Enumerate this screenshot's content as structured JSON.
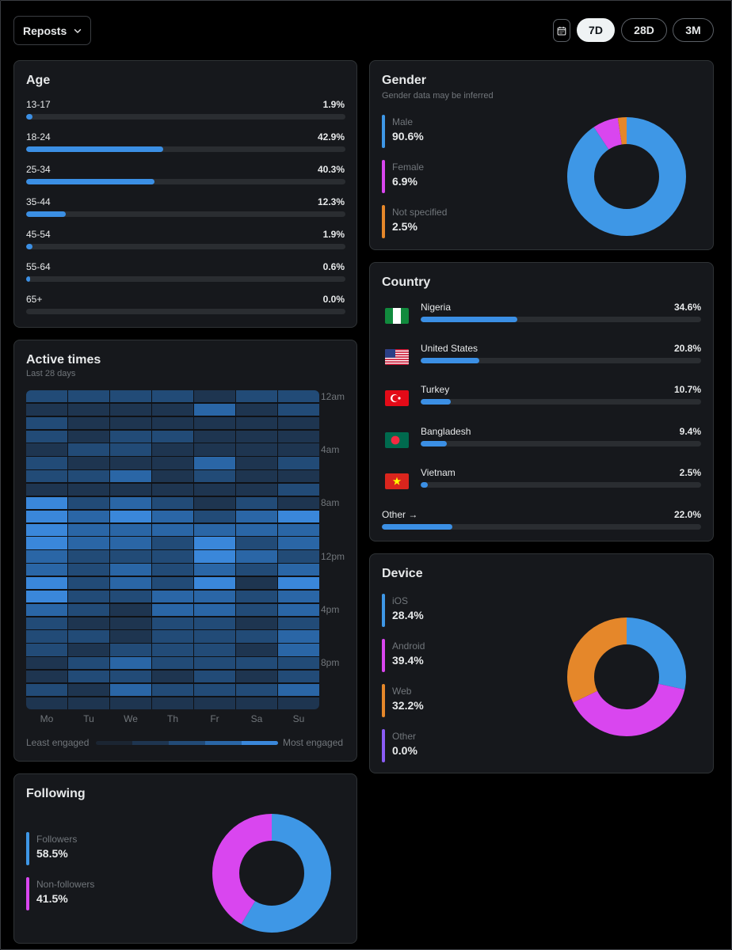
{
  "toolbar": {
    "metric": "Reposts",
    "ranges": [
      {
        "label": "7D",
        "active": true
      },
      {
        "label": "28D",
        "active": false
      },
      {
        "label": "3M",
        "active": false
      }
    ]
  },
  "age": {
    "title": "Age",
    "rows": [
      {
        "label": "13-17",
        "value": "1.9%",
        "pct": 1.9
      },
      {
        "label": "18-24",
        "value": "42.9%",
        "pct": 42.9
      },
      {
        "label": "25-34",
        "value": "40.3%",
        "pct": 40.3
      },
      {
        "label": "35-44",
        "value": "12.3%",
        "pct": 12.3
      },
      {
        "label": "45-54",
        "value": "1.9%",
        "pct": 1.9
      },
      {
        "label": "55-64",
        "value": "0.6%",
        "pct": 0.6
      },
      {
        "label": "65+",
        "value": "0.0%",
        "pct": 0.0
      }
    ]
  },
  "gender": {
    "title": "Gender",
    "subtitle": "Gender data may be inferred",
    "items": [
      {
        "label": "Male",
        "value": "90.6%",
        "pct": 90.6,
        "color": "#3e97e6"
      },
      {
        "label": "Female",
        "value": "6.9%",
        "pct": 6.9,
        "color": "#d946ef"
      },
      {
        "label": "Not specified",
        "value": "2.5%",
        "pct": 2.5,
        "color": "#e5872a"
      }
    ]
  },
  "country": {
    "title": "Country",
    "rows": [
      {
        "label": "Nigeria",
        "value": "34.6%",
        "pct": 34.6,
        "flag": "nigeria-flag-icon"
      },
      {
        "label": "United States",
        "value": "20.8%",
        "pct": 20.8,
        "flag": "united-states-flag-icon"
      },
      {
        "label": "Turkey",
        "value": "10.7%",
        "pct": 10.7,
        "flag": "turkey-flag-icon"
      },
      {
        "label": "Bangladesh",
        "value": "9.4%",
        "pct": 9.4,
        "flag": "bangladesh-flag-icon"
      },
      {
        "label": "Vietnam",
        "value": "2.5%",
        "pct": 2.5,
        "flag": "vietnam-flag-icon"
      }
    ],
    "other": {
      "label": "Other →",
      "value": "22.0%",
      "pct": 22.0
    }
  },
  "active_times": {
    "title": "Active times",
    "subtitle": "Last 28 days",
    "time_labels": [
      "12am",
      "4am",
      "8am",
      "12pm",
      "4pm",
      "8pm"
    ],
    "days": [
      "Mo",
      "Tu",
      "We",
      "Th",
      "Fr",
      "Sa",
      "Su"
    ],
    "legend_least": "Least engaged",
    "legend_most": "Most engaged",
    "palette": [
      "#1b2532",
      "#1e3550",
      "#224b77",
      "#2a66a6",
      "#3a87da"
    ],
    "grid": [
      [
        2,
        2,
        2,
        2,
        1,
        2,
        2
      ],
      [
        1,
        1,
        1,
        1,
        3,
        1,
        2
      ],
      [
        2,
        1,
        1,
        1,
        1,
        1,
        1
      ],
      [
        2,
        1,
        2,
        2,
        1,
        1,
        1
      ],
      [
        1,
        2,
        2,
        1,
        1,
        1,
        1
      ],
      [
        2,
        1,
        1,
        1,
        3,
        1,
        2
      ],
      [
        2,
        2,
        3,
        1,
        2,
        1,
        1
      ],
      [
        1,
        1,
        1,
        1,
        1,
        1,
        2
      ],
      [
        4,
        2,
        3,
        2,
        1,
        2,
        1
      ],
      [
        4,
        3,
        4,
        3,
        2,
        3,
        4
      ],
      [
        4,
        3,
        3,
        3,
        3,
        3,
        3
      ],
      [
        4,
        3,
        3,
        2,
        4,
        2,
        3
      ],
      [
        3,
        2,
        2,
        2,
        4,
        3,
        2
      ],
      [
        3,
        2,
        3,
        2,
        3,
        2,
        3
      ],
      [
        4,
        2,
        3,
        2,
        4,
        1,
        4
      ],
      [
        4,
        2,
        2,
        3,
        3,
        2,
        3
      ],
      [
        3,
        2,
        1,
        3,
        3,
        2,
        3
      ],
      [
        2,
        1,
        1,
        2,
        2,
        1,
        2
      ],
      [
        2,
        2,
        1,
        2,
        2,
        2,
        3
      ],
      [
        2,
        1,
        2,
        2,
        2,
        1,
        3
      ],
      [
        1,
        2,
        3,
        2,
        2,
        2,
        2
      ],
      [
        1,
        2,
        2,
        1,
        2,
        1,
        2
      ],
      [
        2,
        1,
        3,
        2,
        2,
        2,
        3
      ],
      [
        1,
        1,
        1,
        1,
        1,
        1,
        1
      ]
    ]
  },
  "device": {
    "title": "Device",
    "items": [
      {
        "label": "iOS",
        "value": "28.4%",
        "pct": 28.4,
        "color": "#3e97e6"
      },
      {
        "label": "Android",
        "value": "39.4%",
        "pct": 39.4,
        "color": "#d946ef"
      },
      {
        "label": "Web",
        "value": "32.2%",
        "pct": 32.2,
        "color": "#e5872a"
      },
      {
        "label": "Other",
        "value": "0.0%",
        "pct": 0.0,
        "color": "#8b5cf6"
      }
    ]
  },
  "following": {
    "title": "Following",
    "items": [
      {
        "label": "Followers",
        "value": "58.5%",
        "pct": 58.5,
        "color": "#3e97e6"
      },
      {
        "label": "Non-followers",
        "value": "41.5%",
        "pct": 41.5,
        "color": "#d946ef"
      }
    ]
  }
}
